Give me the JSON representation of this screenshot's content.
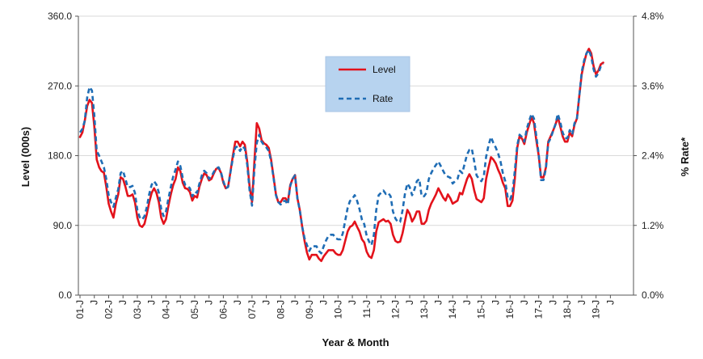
{
  "chart_data": {
    "type": "line",
    "title": "",
    "xlabel": "Year & Month",
    "ylabel_left": "Level (000s)",
    "ylabel_right": "% Rate*",
    "ylim_left": [
      0,
      360
    ],
    "ylim_right": [
      0,
      4.8
    ],
    "yticks_left": [
      "0.0",
      "90.0",
      "180.0",
      "270.0",
      "360.0"
    ],
    "yticks_right": [
      "0.0%",
      "1.2%",
      "2.4%",
      "3.6%",
      "4.8%"
    ],
    "x_tick_labels": [
      "01-J",
      "J",
      "02-J",
      "J",
      "03-J",
      "J",
      "04-J",
      "J",
      "05-J",
      "J",
      "06-J",
      "J",
      "07-J",
      "J",
      "08-J",
      "J",
      "09-J",
      "J",
      "10-J",
      "J",
      "11-J",
      "J",
      "12-J",
      "J",
      "13-J",
      "J",
      "14-J",
      "J",
      "15-J",
      "J",
      "16-J",
      "J",
      "17-J",
      "J",
      "18-J",
      "J",
      "19-J",
      "J"
    ],
    "grid": "horizontal",
    "legend_position": "top-center",
    "series": [
      {
        "name": "Level",
        "axis": "left",
        "color": "#e3121b",
        "style": "solid",
        "x_start": "2001-01",
        "x_step_months": 1,
        "values": [
          204,
          210,
          225,
          244,
          252,
          248,
          218,
          175,
          165,
          160,
          158,
          140,
          118,
          108,
          100,
          118,
          130,
          152,
          150,
          140,
          128,
          128,
          130,
          120,
          100,
          90,
          88,
          92,
          105,
          120,
          132,
          138,
          132,
          120,
          100,
          92,
          98,
          115,
          130,
          142,
          150,
          165,
          160,
          145,
          138,
          137,
          133,
          122,
          128,
          126,
          140,
          150,
          157,
          155,
          148,
          150,
          157,
          163,
          164,
          158,
          145,
          138,
          140,
          160,
          180,
          198,
          198,
          192,
          198,
          194,
          172,
          140,
          120,
          172,
          222,
          215,
          200,
          196,
          194,
          190,
          175,
          153,
          130,
          120,
          120,
          125,
          125,
          120,
          142,
          150,
          155,
          125,
          110,
          88,
          70,
          55,
          46,
          52,
          52,
          52,
          47,
          44,
          50,
          54,
          58,
          58,
          58,
          54,
          52,
          52,
          58,
          70,
          82,
          88,
          90,
          95,
          88,
          82,
          72,
          68,
          56,
          50,
          48,
          58,
          82,
          94,
          96,
          98,
          95,
          96,
          92,
          78,
          70,
          68,
          69,
          80,
          95,
          110,
          105,
          95,
          100,
          108,
          108,
          92,
          92,
          96,
          110,
          118,
          124,
          130,
          138,
          132,
          126,
          122,
          130,
          125,
          118,
          120,
          122,
          132,
          130,
          140,
          150,
          156,
          150,
          135,
          124,
          122,
          120,
          125,
          150,
          165,
          178,
          175,
          170,
          162,
          155,
          145,
          138,
          115,
          115,
          122,
          150,
          190,
          205,
          202,
          195,
          210,
          220,
          230,
          222,
          200,
          180,
          152,
          152,
          165,
          198,
          205,
          212,
          220,
          230,
          218,
          205,
          198,
          198,
          210,
          205,
          220,
          228,
          258,
          285,
          300,
          312,
          318,
          312,
          295,
          285,
          290,
          298,
          300
        ]
      },
      {
        "name": "Rate",
        "axis": "right",
        "color": "#1f6db5",
        "style": "dashed",
        "x_start": "2001-01",
        "x_step_months": 1,
        "values": [
          2.8,
          2.86,
          3.0,
          3.4,
          3.58,
          3.52,
          3.1,
          2.48,
          2.4,
          2.3,
          2.2,
          2.0,
          1.72,
          1.6,
          1.52,
          1.68,
          1.82,
          2.1,
          2.14,
          2.0,
          1.86,
          1.86,
          1.88,
          1.76,
          1.46,
          1.34,
          1.3,
          1.36,
          1.52,
          1.74,
          1.9,
          1.96,
          1.9,
          1.76,
          1.48,
          1.36,
          1.44,
          1.66,
          1.86,
          2.04,
          2.16,
          2.3,
          2.22,
          2.02,
          1.9,
          1.88,
          1.84,
          1.7,
          1.78,
          1.76,
          1.92,
          2.06,
          2.14,
          2.1,
          2.0,
          2.04,
          2.12,
          2.18,
          2.2,
          2.12,
          1.96,
          1.84,
          1.86,
          2.12,
          2.36,
          2.54,
          2.56,
          2.48,
          2.56,
          2.52,
          2.24,
          1.8,
          1.54,
          2.16,
          2.62,
          2.76,
          2.64,
          2.58,
          2.54,
          2.48,
          2.3,
          2.02,
          1.72,
          1.6,
          1.56,
          1.62,
          1.62,
          1.56,
          1.88,
          2.0,
          2.06,
          1.66,
          1.46,
          1.18,
          0.98,
          0.86,
          0.76,
          0.84,
          0.84,
          0.84,
          0.76,
          0.72,
          0.84,
          0.94,
          1.02,
          1.04,
          1.04,
          0.98,
          0.96,
          0.96,
          1.06,
          1.28,
          1.5,
          1.62,
          1.66,
          1.72,
          1.62,
          1.48,
          1.3,
          1.22,
          1.02,
          0.92,
          0.86,
          1.04,
          1.46,
          1.72,
          1.76,
          1.8,
          1.74,
          1.76,
          1.7,
          1.44,
          1.32,
          1.26,
          1.26,
          1.46,
          1.74,
          1.92,
          1.86,
          1.72,
          1.82,
          1.96,
          2.0,
          1.7,
          1.7,
          1.76,
          2.0,
          2.1,
          2.18,
          2.24,
          2.3,
          2.22,
          2.14,
          2.06,
          2.04,
          2.02,
          1.92,
          1.96,
          2.0,
          2.14,
          2.1,
          2.26,
          2.42,
          2.5,
          2.52,
          2.3,
          2.06,
          2.0,
          1.96,
          2.04,
          2.38,
          2.58,
          2.72,
          2.62,
          2.54,
          2.44,
          2.3,
          2.1,
          1.96,
          1.68,
          1.64,
          1.76,
          2.14,
          2.58,
          2.76,
          2.72,
          2.64,
          2.86,
          3.0,
          3.12,
          3.04,
          2.74,
          2.42,
          1.98,
          1.98,
          2.18,
          2.62,
          2.7,
          2.82,
          2.94,
          3.12,
          2.98,
          2.8,
          2.7,
          2.7,
          2.84,
          2.76,
          2.96,
          3.04,
          3.44,
          3.84,
          4.04,
          4.16,
          4.22,
          4.1,
          3.88,
          3.76,
          3.82,
          3.94,
          3.98
        ]
      }
    ]
  }
}
